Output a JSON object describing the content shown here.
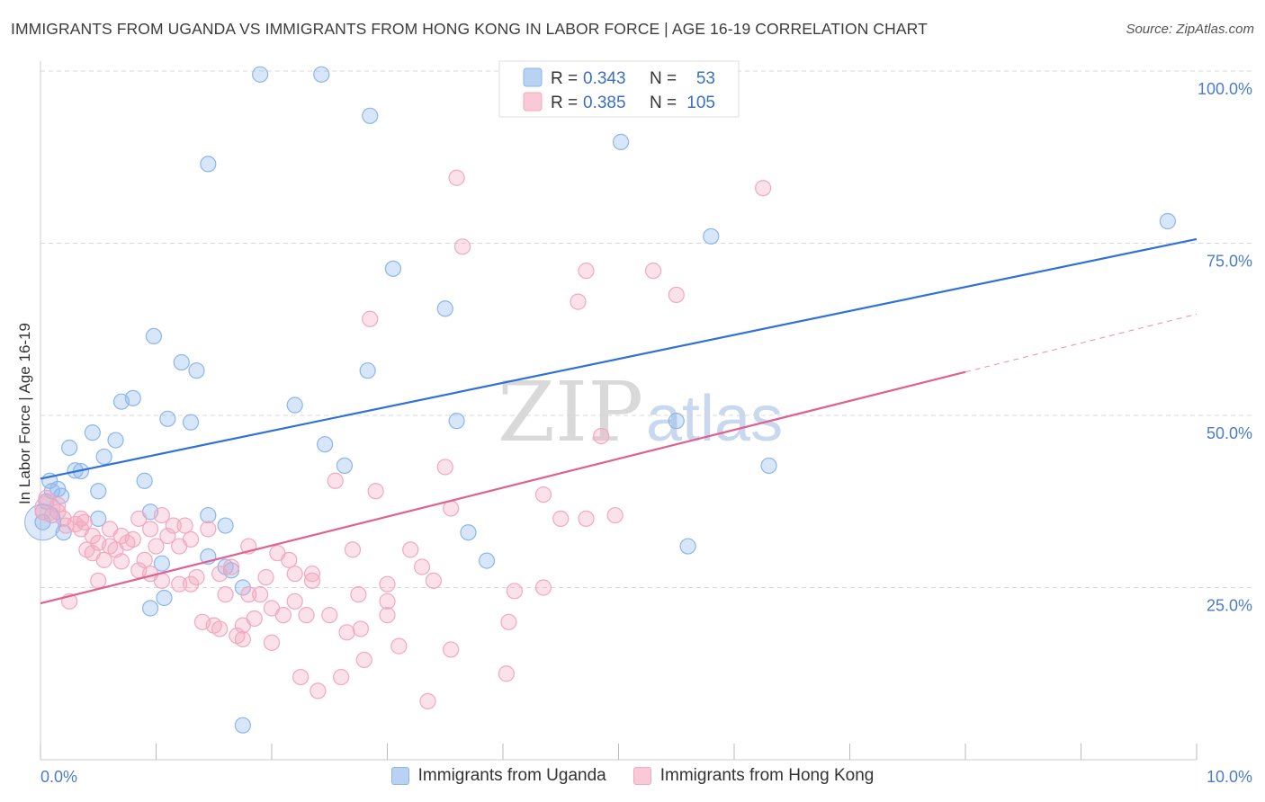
{
  "title": "IMMIGRANTS FROM UGANDA VS IMMIGRANTS FROM HONG KONG IN LABOR FORCE | AGE 16-19 CORRELATION CHART",
  "source": "Source: ZipAtlas.com",
  "watermark": {
    "zip": "ZIP",
    "atlas": "atlas"
  },
  "legend_box": {
    "rows": [
      {
        "r_label": "R =",
        "r_value": "0.343",
        "n_label": "N =",
        "n_value": "53"
      },
      {
        "r_label": "R =",
        "r_value": "0.385",
        "n_label": "N =",
        "n_value": "105"
      }
    ]
  },
  "chart_data": {
    "type": "scatter",
    "title": "IMMIGRANTS FROM UGANDA VS IMMIGRANTS FROM HONG KONG IN LABOR FORCE | AGE 16-19 CORRELATION CHART",
    "xlabel": "",
    "ylabel": "In Labor Force | Age 16-19",
    "xlim": [
      0,
      10
    ],
    "ylim": [
      0,
      102
    ],
    "x_tick_labels": [
      {
        "value": 0,
        "label": "0.0%"
      },
      {
        "value": 10,
        "label": "10.0%"
      }
    ],
    "y_tick_labels": [
      {
        "value": 25,
        "label": "25.0%"
      },
      {
        "value": 50,
        "label": "50.0%"
      },
      {
        "value": 75,
        "label": "75.0%"
      },
      {
        "value": 100,
        "label": "100.0%"
      }
    ],
    "legend_position": "top-center",
    "series": [
      {
        "name": "Immigrants from Uganda",
        "color": "#8db6ea",
        "line_color": "#2f72d6",
        "R": 0.343,
        "N": 53,
        "trend": {
          "x0": 0,
          "y0": 40.8,
          "x1": 10,
          "y1": 75.6
        },
        "points": [
          [
            0.02,
            34.5
          ],
          [
            0.05,
            37.5
          ],
          [
            0.1,
            39.0
          ],
          [
            0.15,
            39.3
          ],
          [
            0.18,
            38.3
          ],
          [
            0.25,
            45.3
          ],
          [
            0.35,
            41.9
          ],
          [
            0.45,
            47.5
          ],
          [
            0.5,
            39.0
          ],
          [
            0.55,
            44.0
          ],
          [
            0.7,
            52.0
          ],
          [
            0.9,
            40.5
          ],
          [
            0.98,
            61.5
          ],
          [
            1.1,
            49.5
          ],
          [
            1.22,
            57.7
          ],
          [
            1.3,
            49.0
          ],
          [
            1.35,
            56.5
          ],
          [
            1.45,
            35.5
          ],
          [
            1.45,
            29.5
          ],
          [
            1.6,
            28.0
          ],
          [
            1.75,
            25.0
          ],
          [
            1.9,
            99.5
          ],
          [
            2.43,
            99.5
          ],
          [
            1.45,
            86.5
          ],
          [
            2.85,
            93.5
          ],
          [
            2.2,
            51.5
          ],
          [
            2.46,
            45.8
          ],
          [
            2.63,
            42.7
          ],
          [
            2.83,
            56.5
          ],
          [
            3.05,
            71.3
          ],
          [
            3.5,
            65.5
          ],
          [
            3.6,
            49.2
          ],
          [
            3.7,
            33.0
          ],
          [
            3.86,
            28.9
          ],
          [
            5.02,
            89.7
          ],
          [
            5.5,
            49.2
          ],
          [
            5.6,
            31.0
          ],
          [
            5.8,
            76.0
          ],
          [
            6.3,
            42.7
          ],
          [
            9.75,
            78.2
          ],
          [
            1.75,
            5.0
          ],
          [
            0.95,
            22.0
          ],
          [
            1.07,
            23.5
          ],
          [
            1.6,
            34.0
          ],
          [
            0.65,
            46.4
          ],
          [
            0.5,
            35.0
          ],
          [
            0.3,
            42.0
          ],
          [
            0.95,
            36.0
          ],
          [
            1.05,
            28.5
          ],
          [
            1.65,
            27.5
          ],
          [
            0.08,
            40.5
          ],
          [
            0.8,
            52.5
          ],
          [
            0.2,
            33.0
          ]
        ]
      },
      {
        "name": "Immigrants from Hong Kong",
        "color": "#f3a8c0",
        "line_color": "#e06090",
        "R": 0.385,
        "N": 105,
        "trend": {
          "x0": 0,
          "y0": 22.7,
          "x1": 8,
          "y1": 56.3
        },
        "trend_dashed": {
          "x0": 8,
          "y0": 56.3,
          "x1": 10,
          "y1": 64.7
        },
        "points": [
          [
            0.02,
            36.0
          ],
          [
            0.05,
            38.0
          ],
          [
            0.1,
            35.5
          ],
          [
            0.15,
            36.0
          ],
          [
            0.2,
            35.0
          ],
          [
            0.22,
            34.0
          ],
          [
            0.3,
            34.2
          ],
          [
            0.35,
            33.5
          ],
          [
            0.38,
            34.5
          ],
          [
            0.4,
            30.5
          ],
          [
            0.45,
            32.5
          ],
          [
            0.5,
            31.5
          ],
          [
            0.5,
            26.0
          ],
          [
            0.55,
            29.0
          ],
          [
            0.6,
            31.0
          ],
          [
            0.65,
            30.5
          ],
          [
            0.7,
            28.8
          ],
          [
            0.75,
            31.5
          ],
          [
            0.8,
            32.0
          ],
          [
            0.85,
            35.0
          ],
          [
            0.85,
            27.5
          ],
          [
            0.9,
            29.0
          ],
          [
            0.95,
            33.5
          ],
          [
            1.0,
            31.0
          ],
          [
            1.05,
            26.0
          ],
          [
            1.1,
            32.5
          ],
          [
            1.15,
            34.0
          ],
          [
            1.2,
            31.0
          ],
          [
            1.25,
            34.0
          ],
          [
            1.3,
            25.5
          ],
          [
            1.35,
            26.5
          ],
          [
            1.4,
            20.0
          ],
          [
            1.45,
            33.5
          ],
          [
            1.5,
            19.5
          ],
          [
            1.55,
            27.0
          ],
          [
            1.6,
            24.0
          ],
          [
            1.65,
            28.0
          ],
          [
            1.7,
            18.0
          ],
          [
            1.75,
            17.5
          ],
          [
            1.8,
            31.0
          ],
          [
            1.85,
            20.5
          ],
          [
            1.9,
            24.0
          ],
          [
            1.95,
            26.5
          ],
          [
            2.0,
            17.0
          ],
          [
            2.05,
            30.0
          ],
          [
            2.1,
            21.0
          ],
          [
            2.15,
            29.0
          ],
          [
            2.2,
            27.0
          ],
          [
            2.25,
            12.0
          ],
          [
            2.3,
            21.0
          ],
          [
            2.35,
            27.0
          ],
          [
            2.4,
            10.0
          ],
          [
            2.5,
            21.0
          ],
          [
            2.55,
            40.5
          ],
          [
            2.6,
            12.0
          ],
          [
            2.7,
            30.5
          ],
          [
            2.75,
            24.0
          ],
          [
            2.8,
            14.5
          ],
          [
            2.9,
            39.0
          ],
          [
            3.0,
            21.0
          ],
          [
            3.1,
            16.5
          ],
          [
            3.2,
            30.5
          ],
          [
            3.3,
            28.0
          ],
          [
            3.35,
            8.5
          ],
          [
            3.4,
            26.0
          ],
          [
            3.5,
            42.5
          ],
          [
            3.55,
            36.5
          ],
          [
            3.55,
            16.0
          ],
          [
            3.6,
            84.5
          ],
          [
            3.65,
            74.5
          ],
          [
            2.85,
            64.0
          ],
          [
            4.03,
            12.5
          ],
          [
            4.05,
            20.0
          ],
          [
            4.1,
            24.5
          ],
          [
            4.35,
            38.5
          ],
          [
            4.35,
            25.0
          ],
          [
            4.5,
            35.0
          ],
          [
            4.65,
            66.5
          ],
          [
            4.72,
            71.0
          ],
          [
            4.72,
            35.0
          ],
          [
            4.97,
            35.5
          ],
          [
            5.3,
            71.0
          ],
          [
            5.5,
            67.5
          ],
          [
            6.25,
            83.0
          ],
          [
            2.77,
            19.0
          ],
          [
            2.65,
            18.5
          ],
          [
            3.0,
            25.5
          ],
          [
            0.25,
            23.0
          ],
          [
            1.05,
            35.5
          ],
          [
            1.3,
            32.0
          ],
          [
            1.8,
            24.0
          ],
          [
            2.2,
            23.0
          ],
          [
            4.85,
            47.0
          ],
          [
            0.6,
            33.5
          ],
          [
            1.55,
            19.0
          ],
          [
            0.15,
            37.0
          ],
          [
            0.35,
            35.0
          ],
          [
            1.75,
            19.5
          ],
          [
            2.0,
            22.0
          ],
          [
            3.0,
            23.0
          ],
          [
            0.95,
            27.0
          ],
          [
            0.7,
            32.5
          ],
          [
            1.2,
            25.5
          ],
          [
            2.35,
            26.0
          ],
          [
            0.45,
            30.0
          ]
        ]
      }
    ]
  }
}
